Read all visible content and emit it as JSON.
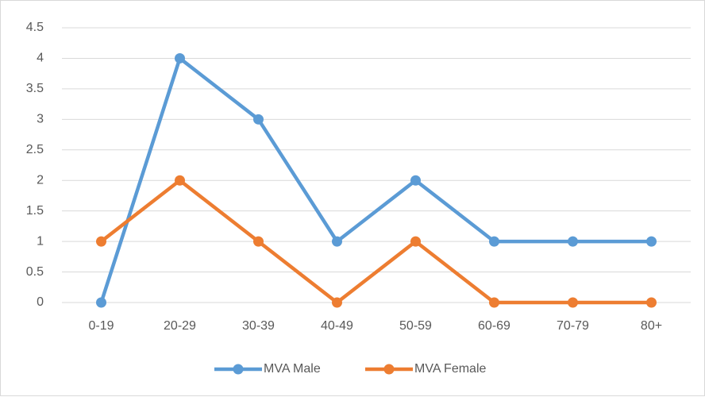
{
  "chart_data": {
    "type": "line",
    "categories": [
      "0-19",
      "20-29",
      "30-39",
      "40-49",
      "50-59",
      "60-69",
      "70-79",
      "80+"
    ],
    "series": [
      {
        "name": "MVA Male",
        "color": "#5b9bd5",
        "values": [
          0,
          4,
          3,
          1,
          2,
          1,
          1,
          1
        ]
      },
      {
        "name": "MVA Female",
        "color": "#ed7d31",
        "values": [
          1,
          2,
          1,
          0,
          1,
          0,
          0,
          0
        ]
      }
    ],
    "ylim": [
      0,
      4.5
    ],
    "yticks": [
      0,
      0.5,
      1,
      1.5,
      2,
      2.5,
      3,
      3.5,
      4,
      4.5
    ],
    "grid": true,
    "legend": "bottom"
  }
}
